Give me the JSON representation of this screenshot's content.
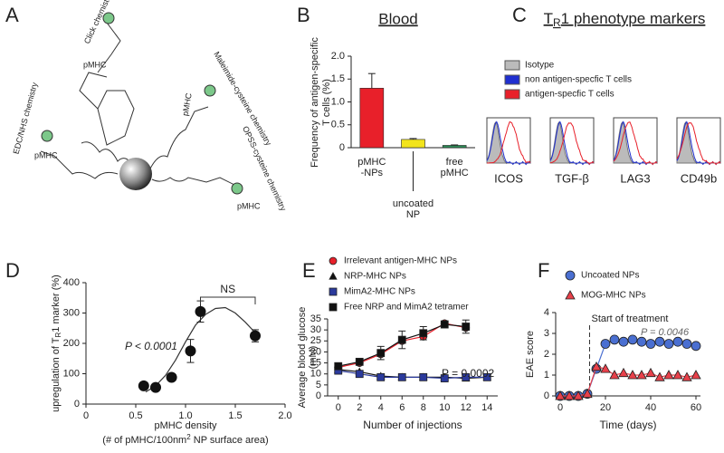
{
  "panel_labels": [
    "A",
    "B",
    "C",
    "D",
    "E",
    "F"
  ],
  "diagram": {
    "labels": [
      "Click chemistry",
      "pMHC",
      "Maleimide-cysteine chemistry",
      "pMHC",
      "EDC/NHS chemistry",
      "pMHC",
      "OPSS-cysteine chemistry",
      "pMHC"
    ]
  },
  "flow": {
    "title": [
      "T",
      "R",
      "1 phenotype markers"
    ],
    "legend": [
      "Isotype",
      "non antigen-specfic T cells",
      "antigen-specfic T cells"
    ],
    "colors": [
      "#bbbbbb",
      "#1f2fd0",
      "#e8202a"
    ],
    "markers": [
      "ICOS",
      "TGF-β",
      "LAG3",
      "CD49b"
    ]
  },
  "chart_data": [
    {
      "type": "bar",
      "title": "Blood",
      "y_label": [
        "Frequency of antigen-specific",
        "T cells (%)"
      ],
      "categories": [
        [
          "pMHC",
          "-NPs"
        ],
        [
          "uncoated",
          "NP"
        ],
        [
          "free",
          "pMHC"
        ]
      ],
      "values": [
        1.3,
        0.18,
        0.05
      ],
      "errors": [
        0.32,
        0.02,
        0.01
      ],
      "colors": [
        "#e8202a",
        "#f2e41c",
        "#2e8b57"
      ],
      "ylim": [
        0,
        2.0
      ],
      "yticks": [
        0,
        0.5,
        {
          "value": 1.0,
          "label": "1.0"
        },
        1.5,
        {
          "value": 2.0,
          "label": "2.0"
        }
      ]
    },
    {
      "type": "scatter",
      "x_label": "pMHC density",
      "x_label_2": [
        "(# of pMHC/100nm",
        "2",
        " NP surface area)"
      ],
      "y_label": [
        "upregulation of T",
        "R",
        "1 marker (%)"
      ],
      "x": [
        0.58,
        0.7,
        0.86,
        1.05,
        1.15,
        1.7
      ],
      "y": [
        60,
        55,
        88,
        175,
        305,
        225
      ],
      "errors": [
        10,
        8,
        12,
        38,
        35,
        20
      ],
      "color": "#111111",
      "curve": {
        "x": [
          0.6,
          0.7,
          0.8,
          0.9,
          1.0,
          1.1,
          1.2,
          1.3,
          1.4,
          1.5,
          1.6,
          1.7
        ],
        "y": [
          40,
          60,
          95,
          145,
          205,
          260,
          295,
          315,
          318,
          300,
          270,
          235
        ]
      },
      "annotations": [
        "P < 0.0001",
        "NS"
      ],
      "xlim": [
        0,
        2.0
      ],
      "xticks": [
        0,
        0.5,
        {
          "value": 1.0,
          "label": "1.0"
        },
        1.5,
        {
          "value": 2.0,
          "label": "2.0"
        }
      ],
      "ylim": [
        0,
        400
      ],
      "yticks": [
        0,
        100,
        200,
        300,
        400
      ]
    },
    {
      "type": "line",
      "x_label": "Number of injections",
      "y_label": [
        "Average blood glucose",
        "(mM)"
      ],
      "x": [
        0,
        2,
        4,
        6,
        8,
        10,
        12,
        14
      ],
      "series": [
        {
          "name": "Irrelevant antigen-MHC  NPs",
          "color": "#e8202a",
          "marker": "circle",
          "values": [
            13,
            15,
            19,
            25,
            27,
            33,
            31,
            null
          ]
        },
        {
          "name": "NRP-MHC NPs",
          "color": "#111111",
          "marker": "triangle",
          "values": [
            12,
            11,
            9,
            8.5,
            8.5,
            8.5,
            8,
            8.5
          ]
        },
        {
          "name": "MimA2-MHC NPs",
          "color": "#2b3a9c",
          "marker": "square",
          "values": [
            11.5,
            10,
            8.5,
            8.5,
            8.5,
            8,
            8.5,
            8.5
          ]
        },
        {
          "name": "Free NRP and MimA2 tetramer",
          "color": "#111111",
          "marker": "square",
          "values": [
            13.5,
            15.5,
            19.5,
            25.5,
            28.5,
            32.5,
            31.5,
            null
          ],
          "errors": [
            1,
            1.5,
            3,
            4,
            3,
            1.5,
            3,
            null
          ]
        }
      ],
      "annotations": [
        "P = 0.0002"
      ],
      "xlim": [
        -1,
        15
      ],
      "xticks": [
        0,
        2,
        4,
        6,
        8,
        10,
        12,
        14
      ],
      "ylim": [
        0,
        35
      ],
      "yticks": [
        0,
        5,
        10,
        15,
        20,
        25,
        30,
        35
      ]
    },
    {
      "type": "line",
      "x_label": "Time (days)",
      "y_label": [
        "EAE score"
      ],
      "x": [
        0,
        4,
        8,
        12,
        16,
        20,
        24,
        28,
        32,
        36,
        40,
        44,
        48,
        52,
        56,
        60
      ],
      "series": [
        {
          "name": "Uncoated NPs",
          "color": "#4a6fd1",
          "marker": "circle",
          "values": [
            0,
            0,
            0,
            0.1,
            1.3,
            2.5,
            2.7,
            2.6,
            2.7,
            2.6,
            2.5,
            2.6,
            2.5,
            2.6,
            2.5,
            2.4
          ]
        },
        {
          "name": "MOG-MHC NPs",
          "color": "#e8404a",
          "marker": "triangle",
          "values": [
            0,
            0,
            0,
            0.1,
            1.4,
            1.3,
            1.0,
            1.1,
            1.0,
            1.0,
            1.1,
            0.9,
            1.0,
            1.0,
            0.9,
            1.0
          ]
        }
      ],
      "annotations": [
        "Start of treatment",
        "P = 0.0046"
      ],
      "treatment_start_day": 13,
      "xlim": [
        -2,
        62
      ],
      "xticks": [
        0,
        20,
        40,
        60
      ],
      "ylim": [
        0,
        4
      ],
      "yticks": [
        0,
        1,
        2,
        3,
        4
      ]
    }
  ]
}
